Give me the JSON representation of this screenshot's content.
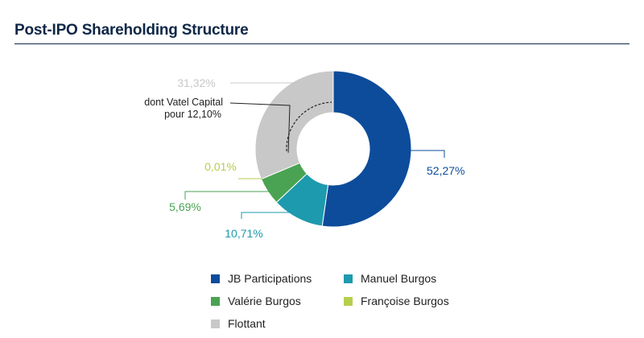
{
  "title": "Post-IPO Shareholding Structure",
  "colors": {
    "jb": "#0c4c9a",
    "manuel": "#1d9aad",
    "valerie": "#4aa353",
    "francoise": "#b5cf4c",
    "flottant": "#c8c8c8",
    "title": "#0f2747"
  },
  "chart_data": {
    "type": "pie",
    "donut": true,
    "slices": [
      {
        "name": "JB Participations",
        "value": 52.27,
        "label": "52,27%",
        "color": "#0c4c9a"
      },
      {
        "name": "Manuel Burgos",
        "value": 10.71,
        "label": "10,71%",
        "color": "#1d9aad"
      },
      {
        "name": "Valérie Burgos",
        "value": 5.69,
        "label": "5,69%",
        "color": "#4aa353"
      },
      {
        "name": "Françoise Burgos",
        "value": 0.01,
        "label": "0,01%",
        "color": "#b5cf4c"
      },
      {
        "name": "Flottant",
        "value": 31.32,
        "label": "31,32%",
        "color": "#c8c8c8"
      }
    ],
    "annotation": {
      "line1": "dont Vatel Capital",
      "line2": "pour 12,10%",
      "sub_value": 12.1
    },
    "legend_placement": "bottom"
  }
}
